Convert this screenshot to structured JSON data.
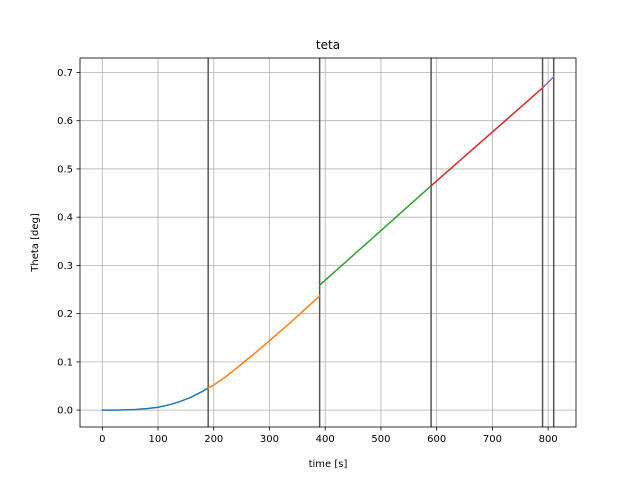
{
  "chart_data": {
    "type": "line",
    "title": "teta",
    "xlabel": "time [s]",
    "ylabel": "Theta [deg]",
    "xlim": [
      -40,
      850
    ],
    "ylim": [
      -0.035,
      0.73
    ],
    "grid": true,
    "x_ticks": [
      0,
      100,
      200,
      300,
      400,
      500,
      600,
      700,
      800
    ],
    "x_tick_labels": [
      "0",
      "100",
      "200",
      "300",
      "400",
      "500",
      "600",
      "700",
      "800"
    ],
    "y_ticks": [
      0.0,
      0.1,
      0.2,
      0.3,
      0.4,
      0.5,
      0.6,
      0.7
    ],
    "y_tick_labels": [
      "0.0",
      "0.1",
      "0.2",
      "0.3",
      "0.4",
      "0.5",
      "0.6",
      "0.7"
    ],
    "vertical_lines": [
      190,
      390,
      590,
      790,
      810
    ],
    "vertical_line_color": "#555555",
    "series": [
      {
        "color": "#1f77b4",
        "x": [
          0,
          20,
          40,
          60,
          80,
          100,
          120,
          140,
          160,
          180,
          190
        ],
        "y": [
          0.0,
          0.0001,
          0.0005,
          0.0013,
          0.003,
          0.006,
          0.011,
          0.018,
          0.027,
          0.039,
          0.046
        ]
      },
      {
        "color": "#ff7f0e",
        "x": [
          190,
          200,
          220,
          240,
          260,
          280,
          300,
          320,
          340,
          360,
          380,
          390
        ],
        "y": [
          0.046,
          0.052,
          0.068,
          0.086,
          0.105,
          0.124,
          0.144,
          0.164,
          0.184,
          0.205,
          0.226,
          0.237
        ]
      },
      {
        "color": "#2ca02c",
        "x": [
          390,
          590
        ],
        "y": [
          0.259,
          0.465
        ]
      },
      {
        "color": "#d62728",
        "x": [
          590,
          790
        ],
        "y": [
          0.465,
          0.668
        ]
      },
      {
        "color": "#9467bd",
        "x": [
          790,
          810
        ],
        "y": [
          0.668,
          0.691
        ]
      }
    ]
  }
}
